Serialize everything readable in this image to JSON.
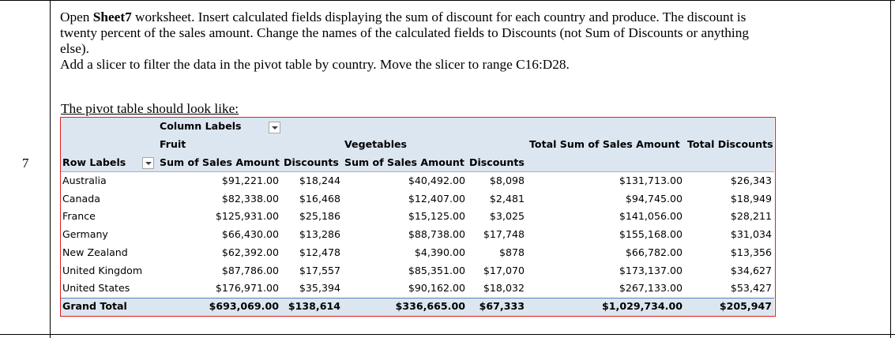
{
  "question": {
    "number": "7",
    "line1_a": "Open ",
    "line1_bold": "Sheet7",
    "line1_b": " worksheet. Insert calculated fields displaying the sum of discount for each country and produce. The discount is",
    "line2": "twenty percent of the sales amount. Change the names of the calculated fields to Discounts (not Sum of Discounts or anything",
    "line3": "else).",
    "line4": "Add a slicer to filter the data in the pivot table by country. Move the slicer to range C16:D28.",
    "note": "The pivot table should look like:"
  },
  "pivot": {
    "column_labels": "Column Labels",
    "row_labels": "Row Labels",
    "groups": [
      "Fruit",
      "Vegetables"
    ],
    "total_sales_header": "Total Sum of Sales Amount",
    "total_discounts_header": "Total Discounts",
    "sub_headers": [
      "Sum of Sales Amount",
      "Discounts",
      "Sum of Sales Amount",
      "Discounts"
    ],
    "rows": [
      {
        "label": "Australia",
        "fruit_sales": "$91,221.00",
        "fruit_disc": "$18,244",
        "veg_sales": "$40,492.00",
        "veg_disc": "$8,098",
        "total_sales": "$131,713.00",
        "total_disc": "$26,343"
      },
      {
        "label": "Canada",
        "fruit_sales": "$82,338.00",
        "fruit_disc": "$16,468",
        "veg_sales": "$12,407.00",
        "veg_disc": "$2,481",
        "total_sales": "$94,745.00",
        "total_disc": "$18,949"
      },
      {
        "label": "France",
        "fruit_sales": "$125,931.00",
        "fruit_disc": "$25,186",
        "veg_sales": "$15,125.00",
        "veg_disc": "$3,025",
        "total_sales": "$141,056.00",
        "total_disc": "$28,211"
      },
      {
        "label": "Germany",
        "fruit_sales": "$66,430.00",
        "fruit_disc": "$13,286",
        "veg_sales": "$88,738.00",
        "veg_disc": "$17,748",
        "total_sales": "$155,168.00",
        "total_disc": "$31,034"
      },
      {
        "label": "New Zealand",
        "fruit_sales": "$62,392.00",
        "fruit_disc": "$12,478",
        "veg_sales": "$4,390.00",
        "veg_disc": "$878",
        "total_sales": "$66,782.00",
        "total_disc": "$13,356"
      },
      {
        "label": "United Kingdom",
        "fruit_sales": "$87,786.00",
        "fruit_disc": "$17,557",
        "veg_sales": "$85,351.00",
        "veg_disc": "$17,070",
        "total_sales": "$173,137.00",
        "total_disc": "$34,627"
      },
      {
        "label": "United States",
        "fruit_sales": "$176,971.00",
        "fruit_disc": "$35,394",
        "veg_sales": "$90,162.00",
        "veg_disc": "$18,032",
        "total_sales": "$267,133.00",
        "total_disc": "$53,427"
      }
    ],
    "grand_total": {
      "label": "Grand Total",
      "fruit_sales": "$693,069.00",
      "fruit_disc": "$138,614",
      "veg_sales": "$336,665.00",
      "veg_disc": "$67,333",
      "total_sales": "$1,029,734.00",
      "total_disc": "$205,947"
    },
    "colors": {
      "header_fill": "#dce6f1",
      "border": "#e02020",
      "accent_line": "#4f81bd"
    }
  }
}
